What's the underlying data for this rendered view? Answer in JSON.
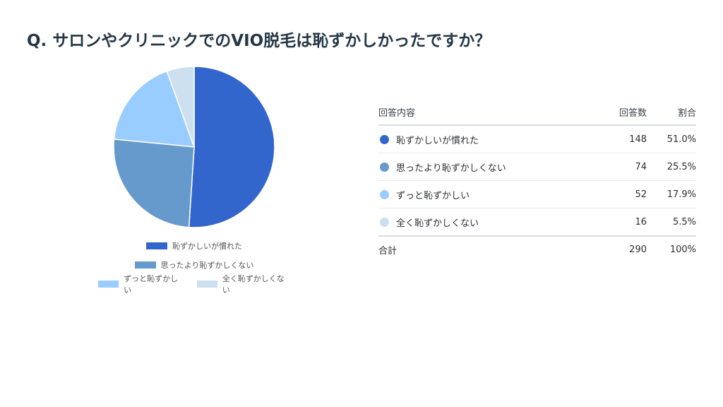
{
  "title": "Q. サロンやクリニックでのVIO脱毛は恥ずかしかったですか？",
  "table": {
    "headers": {
      "label": "回答内容",
      "count": "回答数",
      "ratio": "割合"
    },
    "rows": [
      {
        "label": "恥ずかしいが慣れた",
        "count": "148",
        "ratio": "51.0%",
        "color": "#3366cc"
      },
      {
        "label": "思ったより恥ずかしくない",
        "count": "74",
        "ratio": "25.5%",
        "color": "#6699cc"
      },
      {
        "label": "ずっと恥ずかしい",
        "count": "52",
        "ratio": "17.9%",
        "color": "#99ccff"
      },
      {
        "label": "全く恥ずかしくない",
        "count": "16",
        "ratio": "5.5%",
        "color": "#cce0f0"
      }
    ],
    "total": {
      "label": "合計",
      "count": "290",
      "ratio": "100%"
    }
  },
  "chart_data": {
    "type": "pie",
    "title": "",
    "categories": [
      "恥ずかしいが慣れた",
      "思ったより恥ずかしくない",
      "ずっと恥ずかしい",
      "全く恥ずかしくない"
    ],
    "values": [
      148,
      74,
      52,
      16
    ],
    "colors": [
      "#3366cc",
      "#6699cc",
      "#99ccff",
      "#cce0f0"
    ],
    "legend_position": "bottom"
  }
}
